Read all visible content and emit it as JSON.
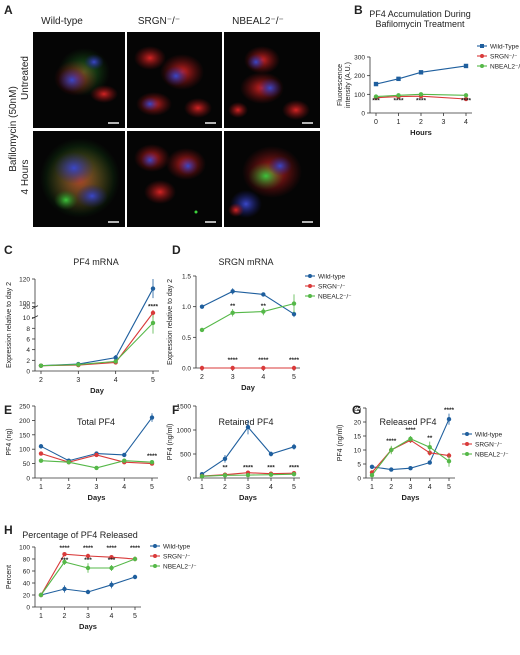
{
  "figure": {
    "panel_letters": {
      "A": "A",
      "B": "B",
      "C": "C",
      "D": "D",
      "E": "E",
      "F": "F",
      "G": "G",
      "H": "H"
    },
    "microscopy": {
      "columns": [
        "Wild-type",
        "SRGN⁻/⁻",
        "NBEAL2⁻/⁻"
      ],
      "row_labels": [
        "Untreated",
        "4 Hours"
      ],
      "group_label": "Bafilomycin (50nM)"
    }
  },
  "chart_data": [
    {
      "id": "B",
      "type": "line",
      "title": "PF4 Accumulation During\nBafilomycin Treatment",
      "xlabel": "Hours",
      "ylabel": "Fluorescence\nintensity (A.U.)",
      "x": [
        0,
        1,
        2,
        3,
        4
      ],
      "xticks": [
        "0",
        "1",
        "2",
        "3",
        "4"
      ],
      "ylim": [
        0,
        300
      ],
      "yticks": [
        "0",
        "100",
        "200",
        "300"
      ],
      "legend": "right",
      "series": [
        {
          "name": "Wild-Type",
          "color": "#1f5f9e",
          "marker": "square",
          "x": [
            0,
            1,
            2,
            4
          ],
          "values": [
            155,
            183,
            218,
            252
          ],
          "err": [
            10,
            8,
            6,
            8
          ]
        },
        {
          "name": "SRGN⁻/⁻",
          "color": "#d93a3a",
          "marker": "circle",
          "x": [
            0,
            1,
            2,
            4
          ],
          "values": [
            82,
            88,
            90,
            75
          ],
          "err": [
            6,
            5,
            5,
            5
          ]
        },
        {
          "name": "NBEAL2⁻/⁻",
          "color": "#55b848",
          "marker": "circle",
          "x": [
            0,
            1,
            2,
            4
          ],
          "values": [
            88,
            95,
            100,
            95
          ],
          "err": [
            6,
            5,
            5,
            5
          ]
        }
      ],
      "annotations": [
        {
          "x": 0,
          "text": "***"
        },
        {
          "x": 1,
          "text": "****"
        },
        {
          "x": 2,
          "text": "****"
        },
        {
          "x": 4,
          "text": "****"
        }
      ]
    },
    {
      "id": "C",
      "type": "line",
      "title": "PF4 mRNA",
      "xlabel": "Day",
      "ylabel": "Expression relative to day 2",
      "x": [
        2,
        3,
        4,
        5
      ],
      "xticks": [
        "2",
        "3",
        "4",
        "5"
      ],
      "yticks": [
        "0",
        "2",
        "4",
        "6",
        "8",
        "10",
        "20",
        "100",
        "120"
      ],
      "series": [
        {
          "name": "Wild-type",
          "color": "#1f5f9e",
          "values": [
            1,
            1.3,
            2.5,
            112
          ],
          "err": [
            0.1,
            0.3,
            0.5,
            8
          ]
        },
        {
          "name": "SRGN⁻/⁻",
          "color": "#d93a3a",
          "values": [
            1,
            1.1,
            1.6,
            13
          ],
          "err": [
            0.1,
            0.2,
            0.3,
            3
          ]
        },
        {
          "name": "NBEAL2⁻/⁻",
          "color": "#55b848",
          "values": [
            1,
            1.2,
            1.8,
            9
          ],
          "err": [
            0.1,
            0.2,
            0.3,
            2
          ]
        }
      ],
      "annotations": [
        {
          "x": 5,
          "text": "****"
        }
      ]
    },
    {
      "id": "D",
      "type": "line",
      "title": "SRGN mRNA",
      "xlabel": "Day",
      "ylabel": "Expression relative to day 2",
      "x": [
        2,
        3,
        4,
        5
      ],
      "xticks": [
        "2",
        "3",
        "4",
        "5"
      ],
      "ylim": [
        0,
        1.5
      ],
      "yticks": [
        "0.0",
        "0.5",
        "1.0",
        "1.5"
      ],
      "legend": "right",
      "series": [
        {
          "name": "Wild-type",
          "color": "#1f5f9e",
          "values": [
            1.0,
            1.25,
            1.2,
            0.88
          ],
          "err": [
            0.03,
            0.05,
            0.02,
            0.05
          ]
        },
        {
          "name": "SRGN⁻/⁻",
          "color": "#d93a3a",
          "values": [
            0.0,
            0.0,
            0.0,
            0.0
          ],
          "err": [
            0,
            0,
            0,
            0
          ]
        },
        {
          "name": "NBEAL2⁻/⁻",
          "color": "#55b848",
          "values": [
            0.62,
            0.9,
            0.92,
            1.05
          ],
          "err": [
            0.03,
            0.06,
            0.06,
            0.15
          ]
        }
      ],
      "annotations": [
        {
          "x": 3,
          "text": "**",
          "pos": "mid"
        },
        {
          "x": 4,
          "text": "**",
          "pos": "mid"
        },
        {
          "x": 3,
          "text": "****",
          "pos": "low"
        },
        {
          "x": 4,
          "text": "****",
          "pos": "low"
        },
        {
          "x": 5,
          "text": "****",
          "pos": "low"
        }
      ]
    },
    {
      "id": "E",
      "type": "line",
      "title": "Total PF4",
      "xlabel": "Days",
      "ylabel": "PF4 (ng)",
      "x": [
        1,
        2,
        3,
        4,
        5
      ],
      "xticks": [
        "1",
        "2",
        "3",
        "4",
        "5"
      ],
      "ylim": [
        0,
        250
      ],
      "yticks": [
        "0",
        "50",
        "100",
        "150",
        "200",
        "250"
      ],
      "series": [
        {
          "name": "Wild-type",
          "color": "#1f5f9e",
          "values": [
            110,
            60,
            85,
            80,
            210
          ],
          "err": [
            8,
            5,
            5,
            5,
            15
          ]
        },
        {
          "name": "SRGN⁻/⁻",
          "color": "#d93a3a",
          "values": [
            85,
            55,
            80,
            55,
            50
          ],
          "err": [
            5,
            5,
            5,
            5,
            5
          ]
        },
        {
          "name": "NBEAL2⁻/⁻",
          "color": "#55b848",
          "values": [
            60,
            55,
            35,
            60,
            55
          ],
          "err": [
            5,
            5,
            5,
            5,
            5
          ]
        }
      ],
      "annotations": [
        {
          "x": 5,
          "text": "****"
        }
      ]
    },
    {
      "id": "F",
      "type": "line",
      "title": "Retained PF4",
      "xlabel": "Days",
      "ylabel": "PF4 (ng/ml)",
      "x": [
        1,
        2,
        3,
        4,
        5
      ],
      "xticks": [
        "1",
        "2",
        "3",
        "4",
        "5"
      ],
      "ylim": [
        0,
        1500
      ],
      "yticks": [
        "0",
        "500",
        "1000",
        "1500"
      ],
      "series": [
        {
          "name": "Wild-type",
          "color": "#1f5f9e",
          "values": [
            80,
            400,
            1060,
            500,
            650
          ],
          "err": [
            20,
            80,
            150,
            50,
            60
          ]
        },
        {
          "name": "SRGN⁻/⁻",
          "color": "#d93a3a",
          "values": [
            40,
            70,
            110,
            90,
            100
          ],
          "err": [
            10,
            10,
            10,
            10,
            10
          ]
        },
        {
          "name": "NBEAL2⁻/⁻",
          "color": "#55b848",
          "values": [
            35,
            55,
            60,
            70,
            80
          ],
          "err": [
            10,
            10,
            10,
            10,
            10
          ]
        }
      ],
      "annotations": [
        {
          "x": 2,
          "text": "**"
        },
        {
          "x": 3,
          "text": "****"
        },
        {
          "x": 4,
          "text": "***"
        },
        {
          "x": 5,
          "text": "****"
        }
      ]
    },
    {
      "id": "G",
      "type": "line",
      "title": "Released PF4",
      "xlabel": "Days",
      "ylabel": "PF4 (ng/ml)",
      "x": [
        1,
        2,
        3,
        4,
        5
      ],
      "xticks": [
        "1",
        "2",
        "3",
        "4",
        "5"
      ],
      "ylim": [
        0,
        25
      ],
      "yticks": [
        "0",
        "5",
        "10",
        "15",
        "20",
        "25"
      ],
      "legend": "right",
      "series": [
        {
          "name": "Wild-type",
          "color": "#1f5f9e",
          "values": [
            4,
            3,
            3.5,
            5.5,
            21
          ],
          "err": [
            0.5,
            0.3,
            0.3,
            0.5,
            2
          ]
        },
        {
          "name": "SRGN⁻/⁻",
          "color": "#d93a3a",
          "values": [
            2,
            10,
            13.5,
            9,
            8
          ],
          "err": [
            0.3,
            1,
            1,
            1,
            1
          ]
        },
        {
          "name": "NBEAL2⁻/⁻",
          "color": "#55b848",
          "values": [
            1,
            10,
            14,
            11,
            6
          ],
          "err": [
            0.3,
            1.5,
            1,
            2,
            2
          ]
        }
      ],
      "annotations": [
        {
          "x": 2,
          "text": "****"
        },
        {
          "x": 3,
          "text": "****"
        },
        {
          "x": 4,
          "text": "**"
        },
        {
          "x": 5,
          "text": "****"
        }
      ]
    },
    {
      "id": "H",
      "type": "line",
      "title": "Percentage of PF4 Released",
      "xlabel": "Days",
      "ylabel": "Percent",
      "x": [
        1,
        2,
        3,
        4,
        5
      ],
      "xticks": [
        "1",
        "2",
        "3",
        "4",
        "5"
      ],
      "ylim": [
        0,
        100
      ],
      "yticks": [
        "0",
        "20",
        "40",
        "60",
        "80",
        "100"
      ],
      "legend": "right",
      "series": [
        {
          "name": "Wild-type",
          "color": "#1f5f9e",
          "values": [
            20,
            30,
            25,
            37,
            50
          ],
          "err": [
            3,
            6,
            3,
            6,
            3
          ]
        },
        {
          "name": "SRGN⁻/⁻",
          "color": "#d93a3a",
          "values": [
            20,
            88,
            85,
            83,
            80
          ],
          "err": [
            3,
            2,
            2,
            2,
            2
          ]
        },
        {
          "name": "NBEAL2⁻/⁻",
          "color": "#55b848",
          "values": [
            20,
            75,
            65,
            65,
            80
          ],
          "err": [
            3,
            5,
            8,
            5,
            4
          ]
        }
      ],
      "annotations": [
        {
          "x": 2,
          "text": "****",
          "pos": "hi"
        },
        {
          "x": 3,
          "text": "****",
          "pos": "hi"
        },
        {
          "x": 4,
          "text": "****",
          "pos": "hi"
        },
        {
          "x": 5,
          "text": "****",
          "pos": "hi"
        },
        {
          "x": 2,
          "text": "***",
          "pos": "mid"
        },
        {
          "x": 3,
          "text": "***",
          "pos": "mid"
        },
        {
          "x": 4,
          "text": "***",
          "pos": "mid"
        }
      ]
    }
  ]
}
